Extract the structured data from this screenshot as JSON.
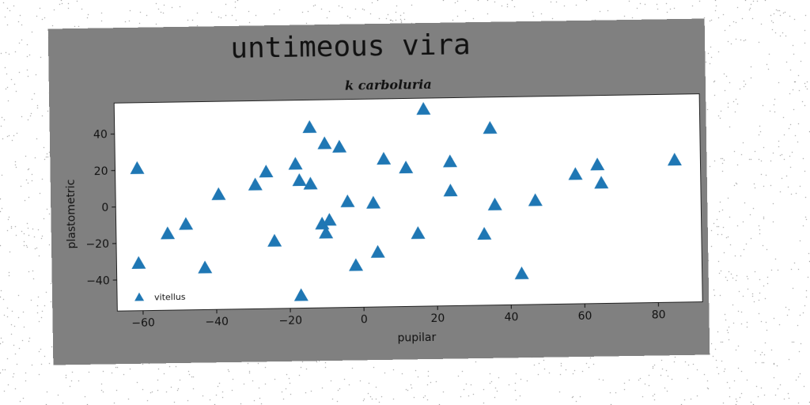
{
  "chart_data": {
    "type": "scatter",
    "title": "untimeous vira",
    "subtitle": "k carboluria",
    "xlabel": "pupilar",
    "ylabel": "plastometric",
    "xlim": [
      -67,
      92
    ],
    "ylim": [
      -57,
      57
    ],
    "xticks": [
      -60,
      -40,
      -20,
      0,
      20,
      40,
      60,
      80
    ],
    "yticks": [
      -40,
      -20,
      0,
      20,
      40
    ],
    "xtick_labels": [
      "−60",
      "−40",
      "−20",
      "0",
      "20",
      "40",
      "60",
      "80"
    ],
    "ytick_labels": [
      "−40",
      "−20",
      "0",
      "20",
      "40"
    ],
    "grid": false,
    "legend_position": "lower-left",
    "marker": "triangle-up",
    "colors": {
      "series": "#1f77b4",
      "figure_background": "#808080",
      "plot_background": "#ffffff"
    },
    "series": [
      {
        "name": "vitellus",
        "points": [
          [
            -61,
            21
          ],
          [
            -61,
            -31
          ],
          [
            -53,
            -15
          ],
          [
            -48,
            -10
          ],
          [
            -43,
            -34
          ],
          [
            -39,
            6
          ],
          [
            -29,
            11
          ],
          [
            -26,
            18
          ],
          [
            -24,
            -20
          ],
          [
            -18,
            22
          ],
          [
            -17,
            13
          ],
          [
            -17,
            -50
          ],
          [
            -14,
            11
          ],
          [
            -14,
            42
          ],
          [
            -11,
            -11
          ],
          [
            -10,
            33
          ],
          [
            -10,
            -16
          ],
          [
            -9,
            -9
          ],
          [
            -6,
            31
          ],
          [
            -4,
            1
          ],
          [
            -2,
            -34
          ],
          [
            3,
            0
          ],
          [
            4,
            -27
          ],
          [
            6,
            24
          ],
          [
            12,
            19
          ],
          [
            15,
            -17
          ],
          [
            17,
            51
          ],
          [
            24,
            22
          ],
          [
            24,
            6
          ],
          [
            33,
            -18
          ],
          [
            35,
            40
          ],
          [
            36,
            -2
          ],
          [
            43,
            -40
          ],
          [
            47,
            0
          ],
          [
            58,
            14
          ],
          [
            64,
            19
          ],
          [
            65,
            9
          ],
          [
            85,
            21
          ]
        ]
      }
    ]
  }
}
